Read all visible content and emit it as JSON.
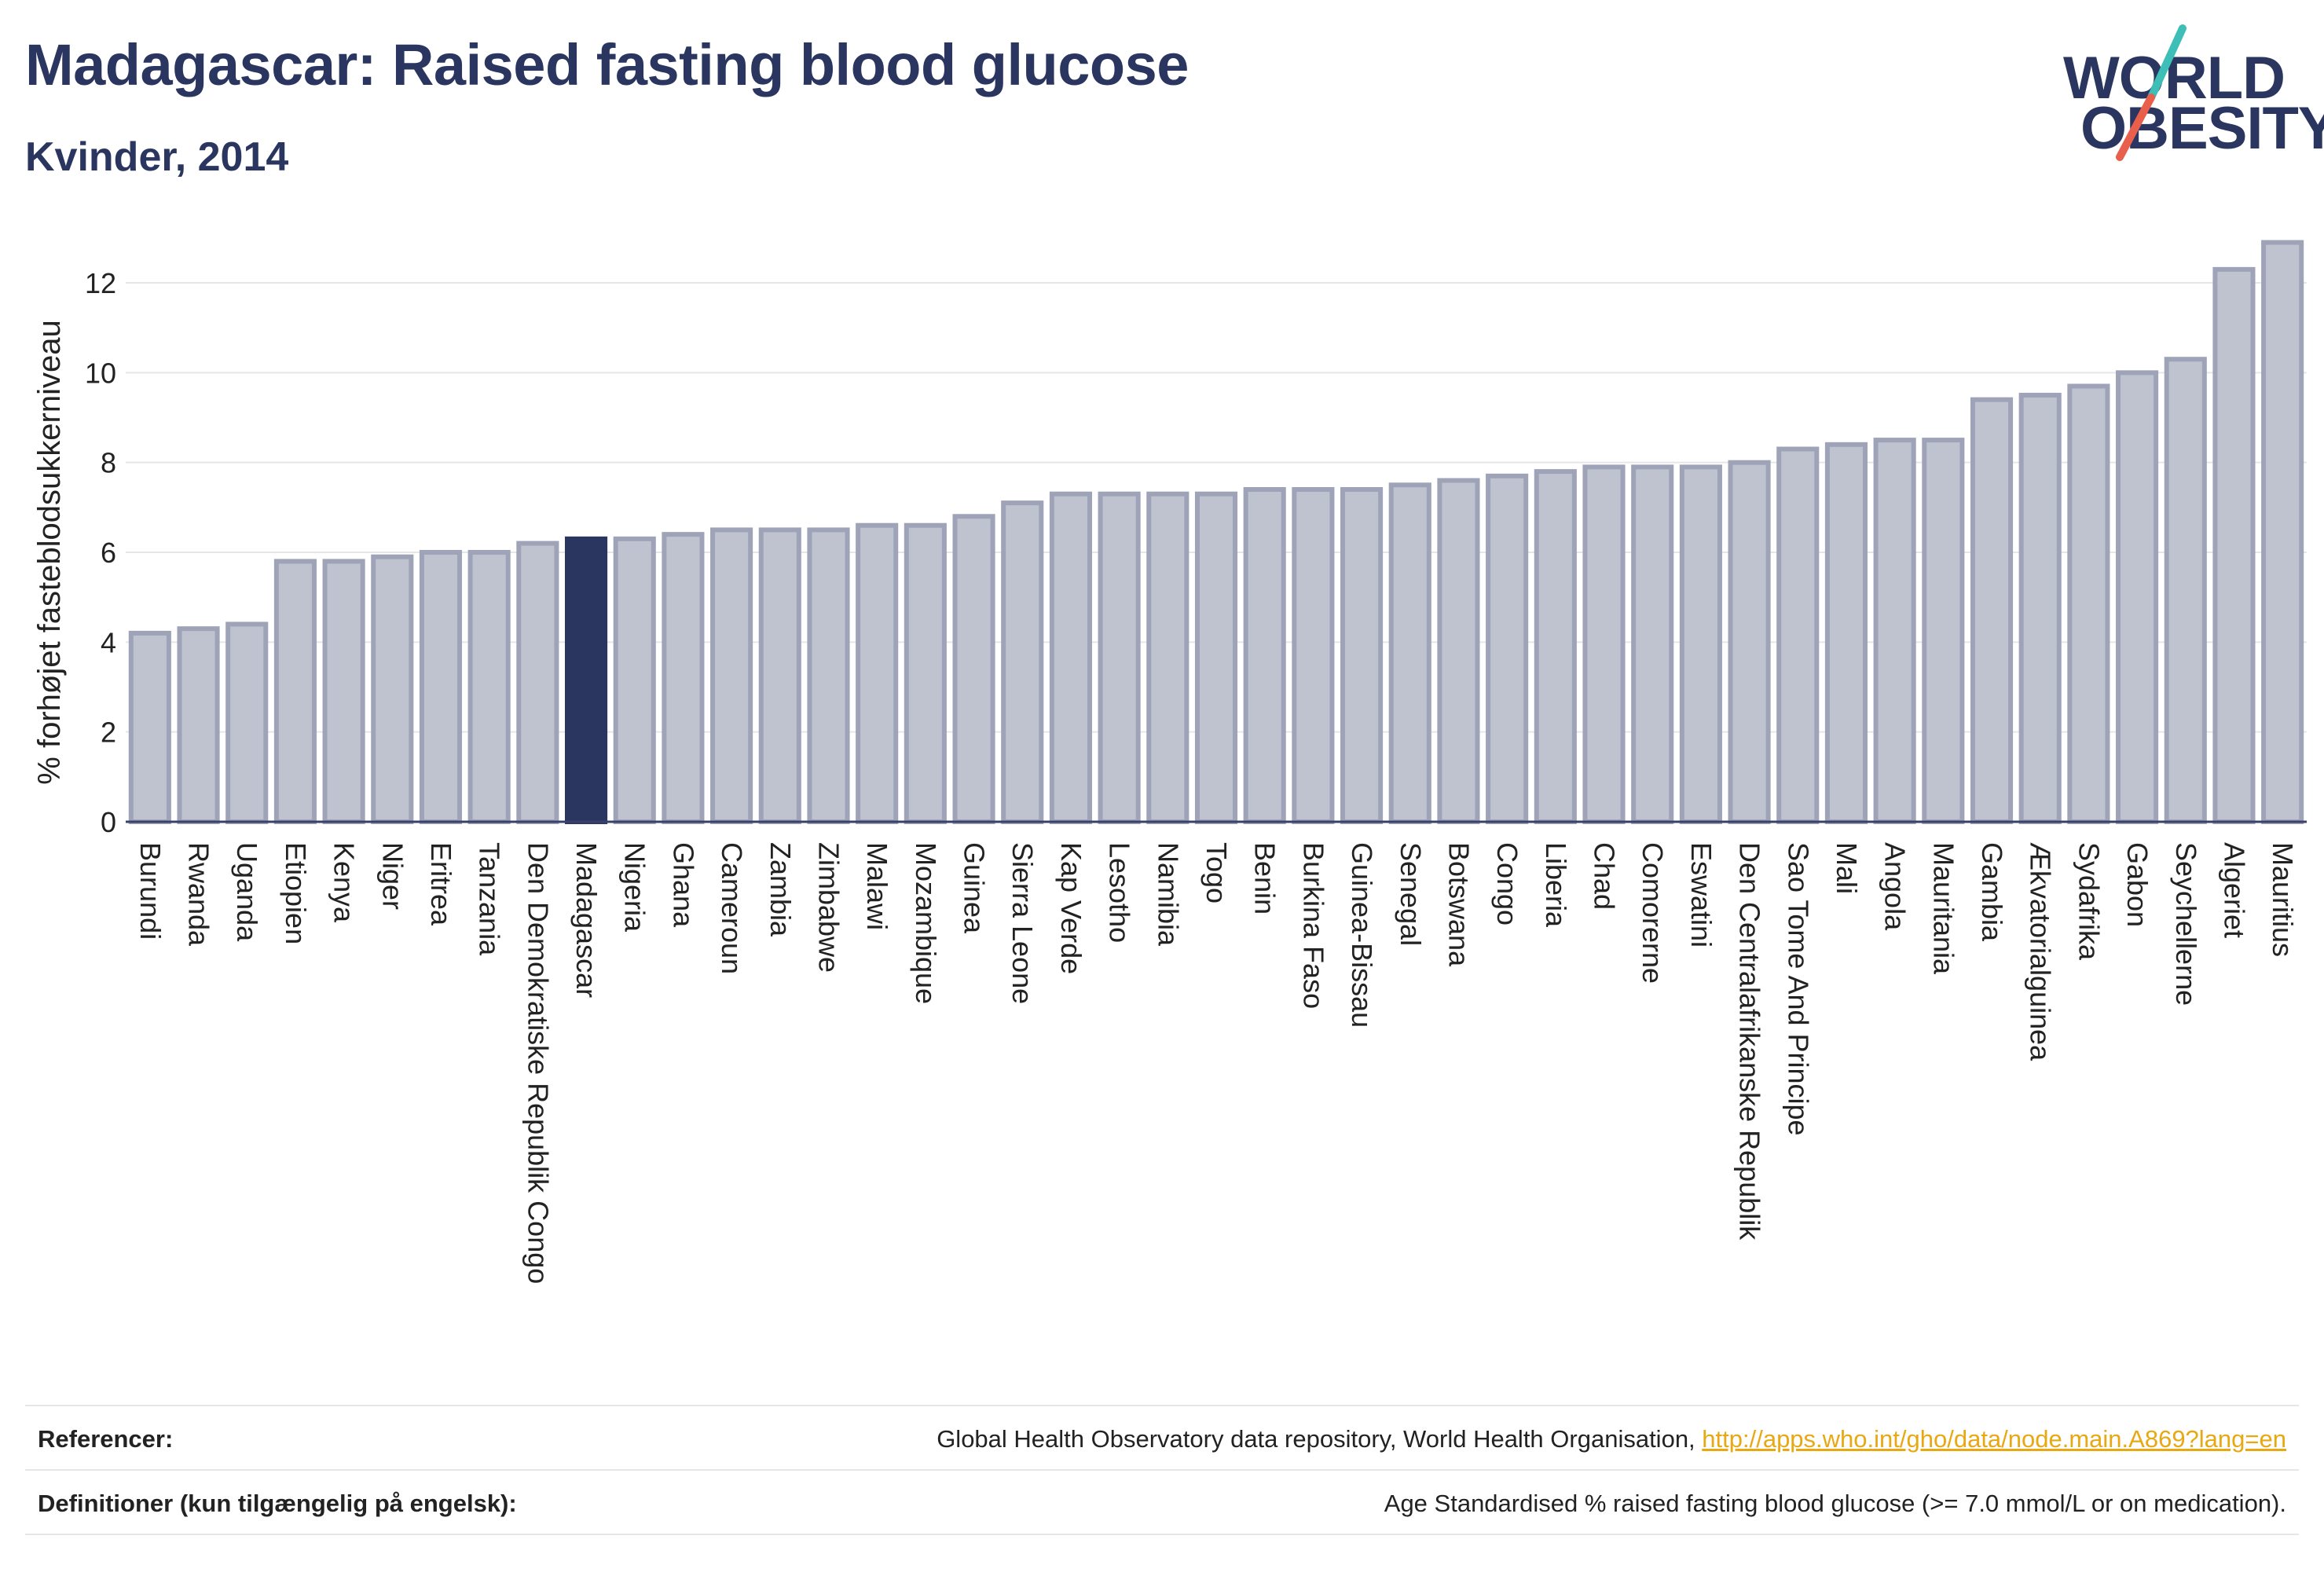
{
  "header": {
    "title": "Madagascar: Raised fasting blood glucose",
    "subtitle": "Kvinder, 2014"
  },
  "logo": {
    "line1": "WORLD",
    "line2": "OBESITY",
    "colors": {
      "text": "#2a3560",
      "slash_top": "#3dbfb8",
      "slash_bottom": "#e8604c"
    }
  },
  "chart_data": {
    "type": "bar",
    "title": "Madagascar: Raised fasting blood glucose",
    "subtitle": "Kvinder, 2014",
    "ylabel": "% forhøjet fasteblodsukkerniveau",
    "xlabel": "",
    "ylim": [
      0,
      13.4
    ],
    "yticks": [
      0,
      2,
      4,
      6,
      8,
      10,
      12
    ],
    "grid": true,
    "highlight": "Madagascar",
    "colors": {
      "bar": "#bfc3d0",
      "bar_edge": "#9ea3b8",
      "highlight": "#2a3560"
    },
    "categories": [
      "Burundi",
      "Rwanda",
      "Uganda",
      "Etiopien",
      "Kenya",
      "Niger",
      "Eritrea",
      "Tanzania",
      "Den Demokratiske Republik Congo",
      "Madagascar",
      "Nigeria",
      "Ghana",
      "Cameroun",
      "Zambia",
      "Zimbabwe",
      "Malawi",
      "Mozambique",
      "Guinea",
      "Sierra Leone",
      "Kap Verde",
      "Lesotho",
      "Namibia",
      "Togo",
      "Benin",
      "Burkina Faso",
      "Guinea-Bissau",
      "Senegal",
      "Botswana",
      "Congo",
      "Liberia",
      "Chad",
      "Comorerne",
      "Eswatini",
      "Den Centralafrikanske Republik",
      "Sao Tome And Principe",
      "Mali",
      "Angola",
      "Mauritania",
      "Gambia",
      "Ækvatorialguinea",
      "Sydafrika",
      "Gabon",
      "Seychellerne",
      "Algeriet",
      "Mauritius"
    ],
    "values": [
      4.2,
      4.3,
      4.4,
      5.8,
      5.8,
      5.9,
      6.0,
      6.0,
      6.2,
      6.3,
      6.3,
      6.4,
      6.5,
      6.5,
      6.5,
      6.6,
      6.6,
      6.8,
      7.1,
      7.3,
      7.3,
      7.3,
      7.3,
      7.4,
      7.4,
      7.4,
      7.5,
      7.6,
      7.7,
      7.8,
      7.9,
      7.9,
      7.9,
      8.0,
      8.3,
      8.4,
      8.5,
      8.5,
      9.4,
      9.5,
      9.7,
      10.0,
      10.3,
      12.3,
      12.9
    ]
  },
  "footer": {
    "references_label": "Referencer:",
    "references_text": "Global Health Observatory data repository, World Health Organisation, ",
    "references_link": "http://apps.who.int/gho/data/node.main.A869?lang=en",
    "definitions_label": "Definitioner (kun tilgængelig på engelsk):",
    "definitions_text": "Age Standardised % raised fasting blood glucose (>= 7.0 mmol/L or on medication)."
  }
}
